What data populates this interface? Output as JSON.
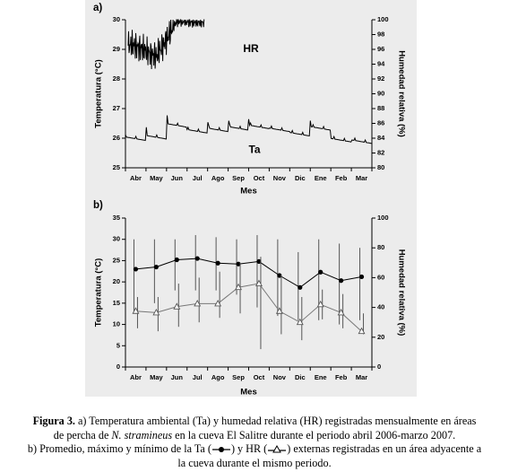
{
  "chart_data": [
    {
      "panel_label": "a)",
      "type": "line",
      "xlabel": "Mes",
      "ylabel_left": "Temperatura (°C)",
      "ylabel_right": "Humedad relativa (%)",
      "categories": [
        "Abr",
        "May",
        "Jun",
        "Jul",
        "Ago",
        "Sep",
        "Oct",
        "Nov",
        "Dic",
        "Ene",
        "Feb",
        "Mar"
      ],
      "ylim_left": [
        25,
        30
      ],
      "yticks_left": [
        "25",
        "26",
        "27",
        "28",
        "29",
        "30"
      ],
      "ylim_right": [
        80,
        100
      ],
      "yticks_right": [
        "80",
        "82",
        "84",
        "86",
        "88",
        "90",
        "92",
        "94",
        "96",
        "98",
        "100"
      ],
      "series": [
        {
          "name": "HR",
          "axis": "right",
          "values": [
            96.5,
            95,
            99.8,
            99.6,
            null,
            null,
            null,
            null,
            null,
            null,
            null,
            null
          ]
        },
        {
          "name": "Ta",
          "axis": "left",
          "values": [
            26.0,
            26.05,
            26.45,
            26.25,
            26.3,
            26.35,
            26.4,
            26.3,
            26.15,
            26.35,
            25.95,
            25.9
          ]
        }
      ]
    },
    {
      "panel_label": "b)",
      "type": "line",
      "xlabel": "Mes",
      "ylabel_left": "Temperatura (°C)",
      "ylabel_right": "Humedad relativa (%)",
      "categories": [
        "Abr",
        "May",
        "Jun",
        "Jul",
        "Ago",
        "Sep",
        "Oct",
        "Nov",
        "Dic",
        "Ene",
        "Feb",
        "Mar"
      ],
      "ylim_left": [
        0,
        35
      ],
      "yticks_left": [
        "0",
        "5",
        "10",
        "15",
        "20",
        "25",
        "30",
        "35"
      ],
      "ylim_right": [
        0,
        100
      ],
      "yticks_right": [
        "0",
        "20",
        "40",
        "60",
        "80",
        "100"
      ],
      "series": [
        {
          "name": "Ta",
          "axis": "left",
          "marker": "filled-circle",
          "values": [
            23.0,
            23.5,
            25.2,
            25.5,
            24.4,
            24.2,
            24.8,
            21.5,
            18.7,
            22.3,
            20.3,
            21.2
          ],
          "max": [
            30.0,
            30.0,
            30.0,
            31.0,
            30.5,
            30.0,
            31.0,
            30.0,
            27.0,
            30.0,
            29.0,
            28.0
          ],
          "min": [
            13.0,
            15.0,
            18.0,
            18.0,
            18.0,
            17.0,
            14.0,
            12.0,
            11.0,
            11.0,
            10.0,
            11.0
          ]
        },
        {
          "name": "HR",
          "axis": "right",
          "marker": "open-triangle",
          "values": [
            37.5,
            36.5,
            40.5,
            42.5,
            42.5,
            53.5,
            56.0,
            37.5,
            30.0,
            42.0,
            36.5,
            24.0
          ],
          "max": [
            47.0,
            47.0,
            56.0,
            60.0,
            64.0,
            70.0,
            74.0,
            62.0,
            47.0,
            52.0,
            49.0,
            36.0
          ],
          "min": [
            26.0,
            24.0,
            27.0,
            30.0,
            33.0,
            36.0,
            12.0,
            22.0,
            18.0,
            32.0,
            26.0,
            22.0
          ]
        }
      ]
    }
  ],
  "caption": {
    "fig_label": "Figura 3.",
    "line1": "a) Temperatura ambiental (Ta) y humedad relativa (HR) registradas mensualmente en áreas",
    "line2_pre": "de percha de",
    "species": "N. stramineus",
    "line2_post": "en la cueva El Salitre durante el periodo abril 2006-marzo 2007.",
    "line3_pre": "b) Promedio, máximo y mínimo de la Ta (",
    "line3_mid": ") y HR (",
    "line3_post": ") externas registradas en un área adyacente a",
    "line4": "la cueva durante el mismo periodo."
  }
}
